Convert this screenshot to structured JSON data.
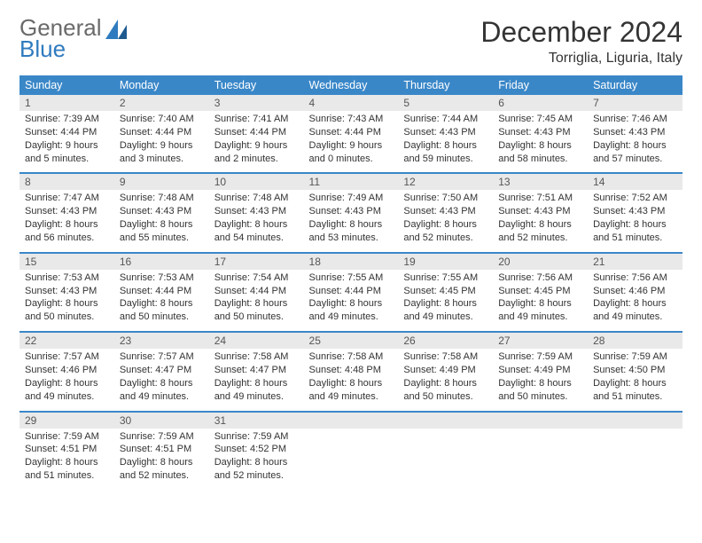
{
  "brand": {
    "name_top": "General",
    "name_bottom": "Blue"
  },
  "title": "December 2024",
  "location": "Torriglia, Liguria, Italy",
  "colors": {
    "header_bg": "#3a87c8",
    "header_text": "#ffffff",
    "daynum_bg": "#e9e9e9",
    "rule": "#3a87c8",
    "logo_gray": "#6a6a6a",
    "logo_blue": "#2f7bbf"
  },
  "weekdays": [
    "Sunday",
    "Monday",
    "Tuesday",
    "Wednesday",
    "Thursday",
    "Friday",
    "Saturday"
  ],
  "weeks": [
    [
      {
        "n": "1",
        "sr": "Sunrise: 7:39 AM",
        "ss": "Sunset: 4:44 PM",
        "dl": "Daylight: 9 hours and 5 minutes."
      },
      {
        "n": "2",
        "sr": "Sunrise: 7:40 AM",
        "ss": "Sunset: 4:44 PM",
        "dl": "Daylight: 9 hours and 3 minutes."
      },
      {
        "n": "3",
        "sr": "Sunrise: 7:41 AM",
        "ss": "Sunset: 4:44 PM",
        "dl": "Daylight: 9 hours and 2 minutes."
      },
      {
        "n": "4",
        "sr": "Sunrise: 7:43 AM",
        "ss": "Sunset: 4:44 PM",
        "dl": "Daylight: 9 hours and 0 minutes."
      },
      {
        "n": "5",
        "sr": "Sunrise: 7:44 AM",
        "ss": "Sunset: 4:43 PM",
        "dl": "Daylight: 8 hours and 59 minutes."
      },
      {
        "n": "6",
        "sr": "Sunrise: 7:45 AM",
        "ss": "Sunset: 4:43 PM",
        "dl": "Daylight: 8 hours and 58 minutes."
      },
      {
        "n": "7",
        "sr": "Sunrise: 7:46 AM",
        "ss": "Sunset: 4:43 PM",
        "dl": "Daylight: 8 hours and 57 minutes."
      }
    ],
    [
      {
        "n": "8",
        "sr": "Sunrise: 7:47 AM",
        "ss": "Sunset: 4:43 PM",
        "dl": "Daylight: 8 hours and 56 minutes."
      },
      {
        "n": "9",
        "sr": "Sunrise: 7:48 AM",
        "ss": "Sunset: 4:43 PM",
        "dl": "Daylight: 8 hours and 55 minutes."
      },
      {
        "n": "10",
        "sr": "Sunrise: 7:48 AM",
        "ss": "Sunset: 4:43 PM",
        "dl": "Daylight: 8 hours and 54 minutes."
      },
      {
        "n": "11",
        "sr": "Sunrise: 7:49 AM",
        "ss": "Sunset: 4:43 PM",
        "dl": "Daylight: 8 hours and 53 minutes."
      },
      {
        "n": "12",
        "sr": "Sunrise: 7:50 AM",
        "ss": "Sunset: 4:43 PM",
        "dl": "Daylight: 8 hours and 52 minutes."
      },
      {
        "n": "13",
        "sr": "Sunrise: 7:51 AM",
        "ss": "Sunset: 4:43 PM",
        "dl": "Daylight: 8 hours and 52 minutes."
      },
      {
        "n": "14",
        "sr": "Sunrise: 7:52 AM",
        "ss": "Sunset: 4:43 PM",
        "dl": "Daylight: 8 hours and 51 minutes."
      }
    ],
    [
      {
        "n": "15",
        "sr": "Sunrise: 7:53 AM",
        "ss": "Sunset: 4:43 PM",
        "dl": "Daylight: 8 hours and 50 minutes."
      },
      {
        "n": "16",
        "sr": "Sunrise: 7:53 AM",
        "ss": "Sunset: 4:44 PM",
        "dl": "Daylight: 8 hours and 50 minutes."
      },
      {
        "n": "17",
        "sr": "Sunrise: 7:54 AM",
        "ss": "Sunset: 4:44 PM",
        "dl": "Daylight: 8 hours and 50 minutes."
      },
      {
        "n": "18",
        "sr": "Sunrise: 7:55 AM",
        "ss": "Sunset: 4:44 PM",
        "dl": "Daylight: 8 hours and 49 minutes."
      },
      {
        "n": "19",
        "sr": "Sunrise: 7:55 AM",
        "ss": "Sunset: 4:45 PM",
        "dl": "Daylight: 8 hours and 49 minutes."
      },
      {
        "n": "20",
        "sr": "Sunrise: 7:56 AM",
        "ss": "Sunset: 4:45 PM",
        "dl": "Daylight: 8 hours and 49 minutes."
      },
      {
        "n": "21",
        "sr": "Sunrise: 7:56 AM",
        "ss": "Sunset: 4:46 PM",
        "dl": "Daylight: 8 hours and 49 minutes."
      }
    ],
    [
      {
        "n": "22",
        "sr": "Sunrise: 7:57 AM",
        "ss": "Sunset: 4:46 PM",
        "dl": "Daylight: 8 hours and 49 minutes."
      },
      {
        "n": "23",
        "sr": "Sunrise: 7:57 AM",
        "ss": "Sunset: 4:47 PM",
        "dl": "Daylight: 8 hours and 49 minutes."
      },
      {
        "n": "24",
        "sr": "Sunrise: 7:58 AM",
        "ss": "Sunset: 4:47 PM",
        "dl": "Daylight: 8 hours and 49 minutes."
      },
      {
        "n": "25",
        "sr": "Sunrise: 7:58 AM",
        "ss": "Sunset: 4:48 PM",
        "dl": "Daylight: 8 hours and 49 minutes."
      },
      {
        "n": "26",
        "sr": "Sunrise: 7:58 AM",
        "ss": "Sunset: 4:49 PM",
        "dl": "Daylight: 8 hours and 50 minutes."
      },
      {
        "n": "27",
        "sr": "Sunrise: 7:59 AM",
        "ss": "Sunset: 4:49 PM",
        "dl": "Daylight: 8 hours and 50 minutes."
      },
      {
        "n": "28",
        "sr": "Sunrise: 7:59 AM",
        "ss": "Sunset: 4:50 PM",
        "dl": "Daylight: 8 hours and 51 minutes."
      }
    ],
    [
      {
        "n": "29",
        "sr": "Sunrise: 7:59 AM",
        "ss": "Sunset: 4:51 PM",
        "dl": "Daylight: 8 hours and 51 minutes."
      },
      {
        "n": "30",
        "sr": "Sunrise: 7:59 AM",
        "ss": "Sunset: 4:51 PM",
        "dl": "Daylight: 8 hours and 52 minutes."
      },
      {
        "n": "31",
        "sr": "Sunrise: 7:59 AM",
        "ss": "Sunset: 4:52 PM",
        "dl": "Daylight: 8 hours and 52 minutes."
      },
      {
        "empty": true
      },
      {
        "empty": true
      },
      {
        "empty": true
      },
      {
        "empty": true
      }
    ]
  ]
}
